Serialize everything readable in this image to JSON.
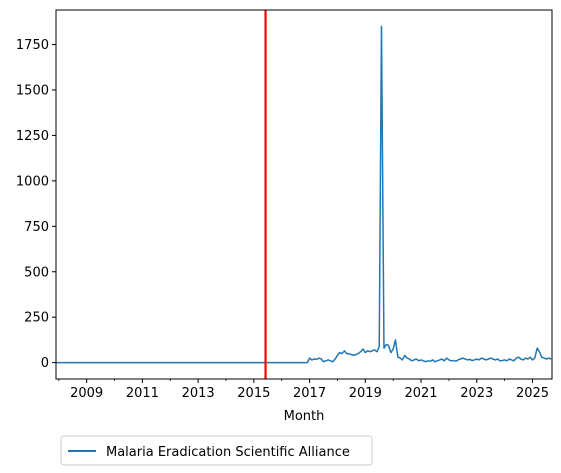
{
  "chart_data": {
    "type": "line",
    "title": "",
    "xlabel": "Month",
    "ylabel": "",
    "xlim": [
      2007.9,
      2025.7
    ],
    "ylim": [
      -90,
      1940
    ],
    "x_ticks": [
      2009,
      2011,
      2013,
      2015,
      2017,
      2019,
      2021,
      2023,
      2025
    ],
    "y_ticks": [
      0,
      250,
      500,
      750,
      1000,
      1250,
      1500,
      1750
    ],
    "grid": false,
    "legend_position": "below-left",
    "reference_line": {
      "x": 2015.42,
      "color": "#ff0000"
    },
    "series": [
      {
        "name": "Malaria Eradication Scientific Alliance",
        "color": "#1f77b4",
        "x": [
          2007.9,
          2016.92,
          2017.0,
          2017.08,
          2017.17,
          2017.25,
          2017.33,
          2017.42,
          2017.5,
          2017.58,
          2017.67,
          2017.75,
          2017.83,
          2017.92,
          2018.0,
          2018.08,
          2018.17,
          2018.25,
          2018.33,
          2018.42,
          2018.5,
          2018.58,
          2018.67,
          2018.75,
          2018.83,
          2018.92,
          2019.0,
          2019.08,
          2019.17,
          2019.25,
          2019.33,
          2019.42,
          2019.5,
          2019.58,
          2019.67,
          2019.75,
          2019.83,
          2019.92,
          2020.0,
          2020.08,
          2020.17,
          2020.25,
          2020.33,
          2020.42,
          2020.5,
          2020.58,
          2020.67,
          2020.75,
          2020.83,
          2020.92,
          2021.0,
          2021.08,
          2021.17,
          2021.25,
          2021.33,
          2021.42,
          2021.5,
          2021.58,
          2021.67,
          2021.75,
          2021.83,
          2021.92,
          2022.0,
          2022.08,
          2022.17,
          2022.25,
          2022.33,
          2022.42,
          2022.5,
          2022.58,
          2022.67,
          2022.75,
          2022.83,
          2022.92,
          2023.0,
          2023.08,
          2023.17,
          2023.25,
          2023.33,
          2023.42,
          2023.5,
          2023.58,
          2023.67,
          2023.75,
          2023.83,
          2023.92,
          2024.0,
          2024.08,
          2024.17,
          2024.25,
          2024.33,
          2024.42,
          2024.5,
          2024.58,
          2024.67,
          2024.75,
          2024.83,
          2024.92,
          2025.0,
          2025.08,
          2025.17,
          2025.25,
          2025.33,
          2025.42,
          2025.5,
          2025.58,
          2025.67
        ],
        "y": [
          0,
          0,
          25,
          15,
          20,
          18,
          25,
          20,
          5,
          10,
          15,
          10,
          5,
          20,
          40,
          55,
          50,
          65,
          50,
          48,
          45,
          40,
          45,
          50,
          60,
          75,
          55,
          65,
          60,
          65,
          70,
          60,
          90,
          1850,
          80,
          100,
          95,
          55,
          75,
          125,
          30,
          25,
          15,
          40,
          25,
          20,
          10,
          15,
          20,
          10,
          15,
          10,
          5,
          10,
          8,
          15,
          5,
          10,
          15,
          20,
          10,
          25,
          15,
          10,
          12,
          8,
          15,
          20,
          25,
          20,
          15,
          18,
          12,
          15,
          20,
          15,
          25,
          20,
          15,
          20,
          25,
          20,
          15,
          20,
          10,
          12,
          15,
          10,
          20,
          15,
          10,
          25,
          30,
          20,
          15,
          25,
          20,
          30,
          15,
          25,
          80,
          60,
          30,
          25,
          20,
          25,
          20
        ]
      }
    ]
  }
}
